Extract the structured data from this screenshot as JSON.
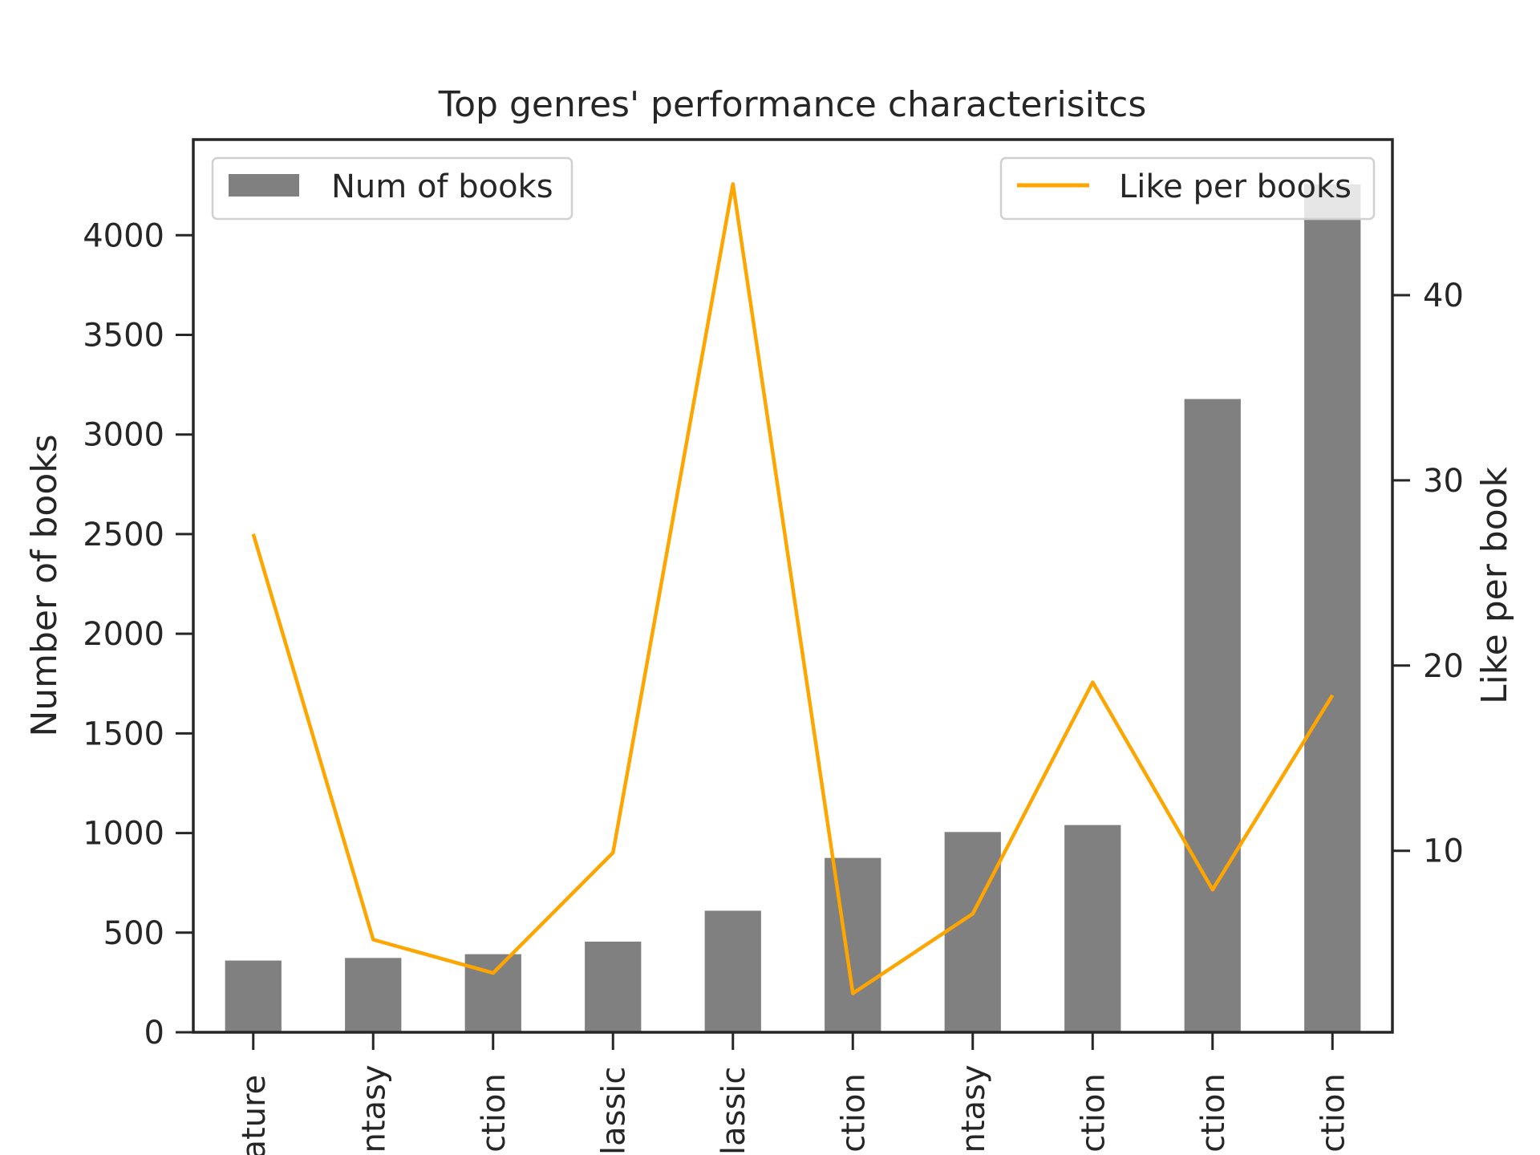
{
  "chart_data": {
    "type": "bar",
    "title": "Top genres' performance characterisitcs",
    "categories": [
      "rature",
      "antasy",
      "fiction",
      "classic",
      "classic",
      "fiction",
      "antasy",
      "fiction",
      "fiction",
      "fiction"
    ],
    "series": [
      {
        "name": "Num of books",
        "type": "bar",
        "axis": "left",
        "values": [
          360,
          373,
          392,
          455,
          610,
          875,
          1005,
          1040,
          3178,
          4255
        ]
      },
      {
        "name": "Like per books",
        "type": "line",
        "axis": "right",
        "values": [
          27.1,
          5.2,
          3.4,
          9.9,
          46.0,
          2.3,
          6.6,
          19.1,
          7.9,
          18.4
        ]
      }
    ],
    "ylabel": "Number of books",
    "y2label": "Like per book",
    "ylim": [
      0,
      4480
    ],
    "y2lim": [
      0.2,
      48.4
    ],
    "yticks": [
      0,
      500,
      1000,
      1500,
      2000,
      2500,
      3000,
      3500,
      4000
    ],
    "y2ticks": [
      10,
      20,
      30,
      40
    ],
    "legend_bar_position": "upper-left",
    "legend_line_position": "upper-right",
    "grid": false,
    "colors": {
      "bar": "#808080",
      "line": "#FFA500",
      "axes": "#262626"
    }
  }
}
